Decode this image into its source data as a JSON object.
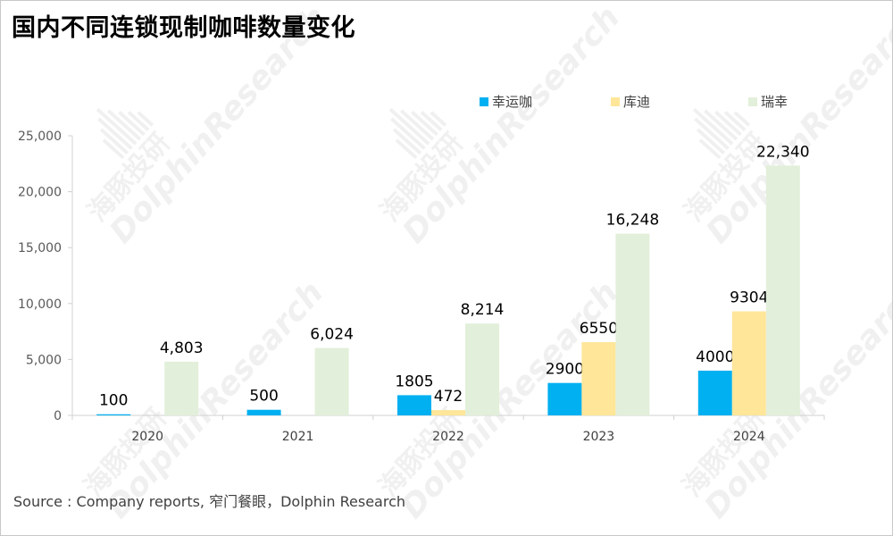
{
  "title": "国内不同连锁现制咖啡数量变化",
  "source": "Source : Company reports, 窄门餐眼，Dolphin Research",
  "watermark": {
    "cn": "海豚投研",
    "en": "DolphinResearch"
  },
  "chart_data": {
    "type": "bar",
    "categories": [
      "2020",
      "2021",
      "2022",
      "2023",
      "2024"
    ],
    "series": [
      {
        "name": "幸运咖",
        "color": "#00b0f0",
        "values": [
          100,
          500,
          1805,
          2900,
          4000
        ],
        "labels": [
          "100",
          "500",
          "1805",
          "2900",
          "4000"
        ]
      },
      {
        "name": "库迪",
        "color": "#ffe699",
        "values": [
          null,
          null,
          472,
          6550,
          9304
        ],
        "labels": [
          "",
          "",
          "472",
          "6550",
          "9304"
        ]
      },
      {
        "name": "瑞幸",
        "color": "#e2efda",
        "values": [
          4803,
          6024,
          8214,
          16248,
          22340
        ],
        "labels": [
          "4,803",
          "6,024",
          "8,214",
          "16,248",
          "22,340"
        ]
      }
    ],
    "ylim": [
      0,
      25000
    ],
    "yticks": [
      0,
      5000,
      10000,
      15000,
      20000,
      25000
    ],
    "ytick_labels": [
      "0",
      "5,000",
      "10,000",
      "15,000",
      "20,000",
      "25,000"
    ],
    "legend_position": "top-right",
    "xlabel": "",
    "ylabel": ""
  }
}
